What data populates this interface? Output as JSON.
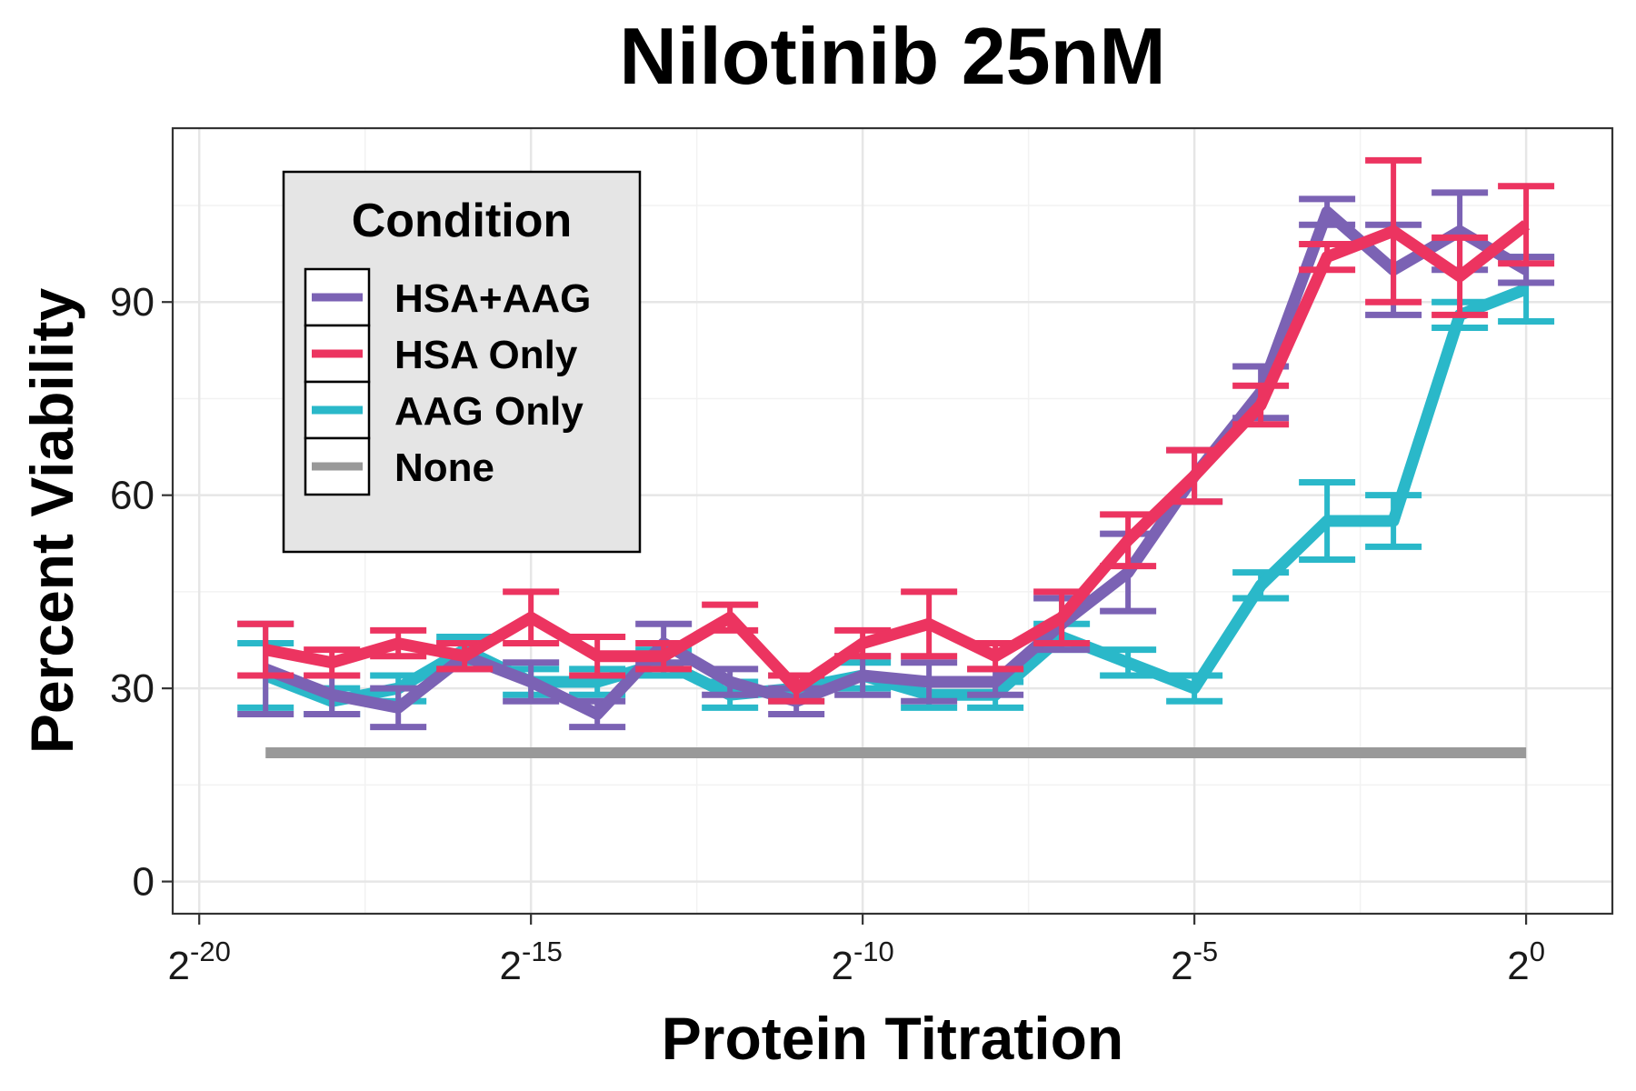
{
  "chart_data": {
    "type": "line",
    "title": "Nilotinib 25nM",
    "xlabel": "Protein Titration",
    "ylabel": "Percent Viability",
    "x_scale": "log2",
    "xlim_exp": [
      -20.4,
      1.3
    ],
    "ylim": [
      -5,
      117
    ],
    "x_ticks": [
      {
        "base": "2",
        "exp": "-20",
        "value_exp": -20
      },
      {
        "base": "2",
        "exp": "-15",
        "value_exp": -15
      },
      {
        "base": "2",
        "exp": "-10",
        "value_exp": -10
      },
      {
        "base": "2",
        "exp": "-5",
        "value_exp": -5
      },
      {
        "base": "2",
        "exp": "0",
        "value_exp": 0
      }
    ],
    "y_ticks": [
      0,
      30,
      60,
      90
    ],
    "grid": true,
    "legend": {
      "title": "Condition",
      "position": "top-left",
      "entries": [
        "HSA+AAG",
        "HSA Only",
        "AAG Only",
        "None"
      ]
    },
    "series": [
      {
        "name": "HSA+AAG",
        "color": "#7b62b4",
        "x_exp": [
          -19,
          -18,
          -17,
          -16,
          -15,
          -14,
          -13,
          -12,
          -11,
          -10,
          -9,
          -8,
          -7,
          -6,
          -5,
          -4,
          -3,
          -2,
          -1,
          0
        ],
        "y": [
          33,
          29,
          27,
          35,
          31,
          26,
          37,
          31,
          28,
          32,
          31,
          31,
          40,
          48,
          63,
          76,
          104,
          95,
          101,
          95
        ],
        "err": [
          7,
          3,
          3,
          2,
          3,
          2,
          3,
          2,
          2,
          3,
          3,
          2,
          4,
          6,
          4,
          4,
          2,
          7,
          6,
          2
        ]
      },
      {
        "name": "HSA Only",
        "color": "#ec3460",
        "x_exp": [
          -19,
          -18,
          -17,
          -16,
          -15,
          -14,
          -13,
          -12,
          -11,
          -10,
          -9,
          -8,
          -7,
          -6,
          -5,
          -4,
          -3,
          -2,
          -1,
          0
        ],
        "y": [
          36,
          34,
          37,
          35,
          41,
          35,
          35,
          41,
          30,
          37,
          40,
          35,
          41,
          53,
          63,
          74,
          97,
          101,
          94,
          102
        ],
        "err": [
          4,
          2,
          2,
          2,
          4,
          3,
          2,
          2,
          2,
          2,
          5,
          2,
          4,
          4,
          4,
          3,
          2,
          11,
          6,
          6
        ]
      },
      {
        "name": "AAG Only",
        "color": "#2ab8c9",
        "x_exp": [
          -19,
          -18,
          -17,
          -16,
          -15,
          -14,
          -13,
          -12,
          -11,
          -10,
          -9,
          -8,
          -7,
          -6,
          -5,
          -4,
          -3,
          -2,
          -1,
          0
        ],
        "y": [
          32,
          28,
          30,
          36,
          31,
          31,
          34,
          29,
          30,
          32,
          29,
          29,
          38,
          34,
          30,
          46,
          56,
          56,
          88,
          92
        ],
        "err": [
          5,
          2,
          2,
          2,
          2,
          2,
          2,
          2,
          2,
          2,
          2,
          2,
          2,
          2,
          2,
          2,
          6,
          4,
          2,
          5
        ]
      },
      {
        "name": "None",
        "color": "#999999",
        "x_exp": [
          -19,
          0
        ],
        "y": [
          20,
          20
        ],
        "err": null
      }
    ]
  }
}
